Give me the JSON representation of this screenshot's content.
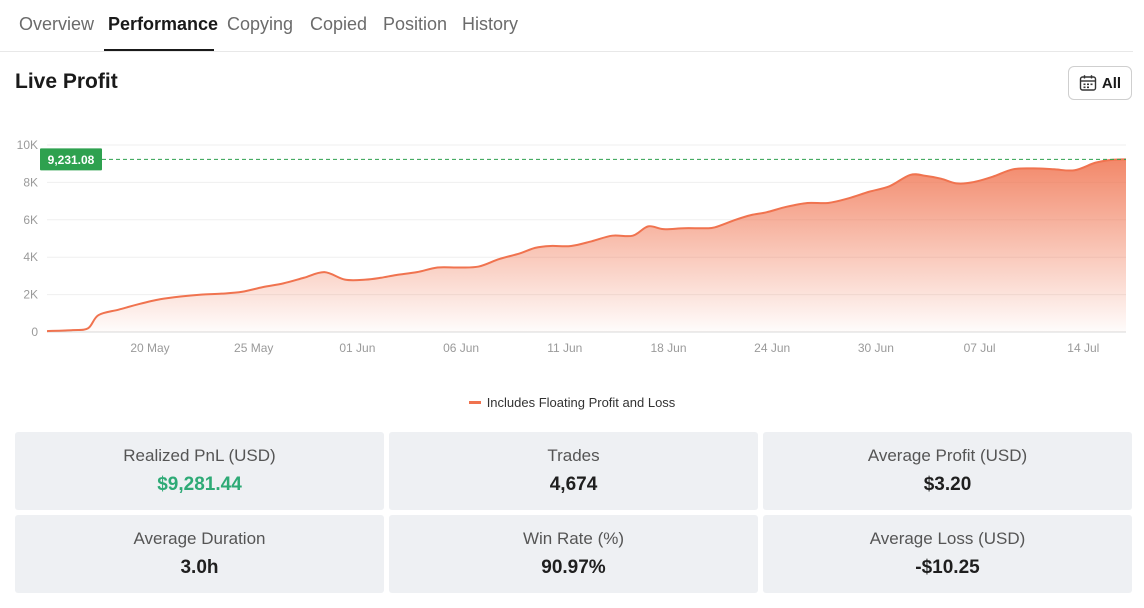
{
  "tabs": [
    {
      "label": "Overview",
      "active": false
    },
    {
      "label": "Performance",
      "active": true
    },
    {
      "label": "Copying",
      "active": false
    },
    {
      "label": "Copied",
      "active": false
    },
    {
      "label": "Position",
      "active": false
    },
    {
      "label": "History",
      "active": false
    }
  ],
  "section": {
    "title": "Live Profit"
  },
  "range_button": {
    "label": "All",
    "icon": "calendar-icon"
  },
  "colors": {
    "line": "#f0734f",
    "marker": "#2ea14f",
    "positive": "#2eaa76"
  },
  "chart_data": {
    "type": "area",
    "marker_label": "9,231.08",
    "marker_value": 9231.08,
    "ylim": [
      0,
      10000
    ],
    "yticks": [
      0,
      2000,
      4000,
      6000,
      8000,
      10000
    ],
    "ytick_labels": [
      "0",
      "2K",
      "4K",
      "6K",
      "8K",
      "10K"
    ],
    "xticks": [
      "20 May",
      "25 May",
      "01 Jun",
      "06 Jun",
      "11 Jun",
      "18 Jun",
      "24 Jun",
      "30 Jun",
      "07 Jul",
      "14 Jul"
    ],
    "x": [
      0,
      2.5,
      4,
      5,
      7,
      9,
      11,
      13,
      15,
      17,
      19,
      21,
      23,
      25,
      27,
      29,
      31,
      32.5,
      34,
      36,
      38,
      40,
      42,
      44,
      46,
      47.5,
      49,
      51,
      53,
      55,
      57,
      58.5,
      60,
      62,
      64,
      65,
      67,
      68.5,
      70,
      72,
      74,
      76,
      78,
      80,
      82,
      84,
      85.5,
      87,
      88.5,
      90,
      92,
      94,
      96,
      98,
      100,
      102,
      103.5,
      105
    ],
    "y": [
      50,
      100,
      200,
      900,
      1200,
      1500,
      1750,
      1900,
      2000,
      2050,
      2150,
      2400,
      2600,
      2900,
      3200,
      2800,
      2800,
      2900,
      3050,
      3200,
      3450,
      3450,
      3500,
      3900,
      4200,
      4500,
      4600,
      4600,
      4850,
      5150,
      5150,
      5650,
      5500,
      5550,
      5550,
      5600,
      6000,
      6250,
      6400,
      6700,
      6900,
      6900,
      7150,
      7500,
      7800,
      8400,
      8350,
      8200,
      7950,
      8000,
      8300,
      8700,
      8750,
      8700,
      8650,
      9050,
      9200,
      9231.08
    ],
    "xlim": [
      0,
      105
    ],
    "legend": [
      "Includes Floating Profit and Loss"
    ],
    "legend_position": "bottom-center"
  },
  "stats": [
    {
      "label": "Realized PnL (USD)",
      "value": "$9,281.44",
      "positive": true
    },
    {
      "label": "Trades",
      "value": "4,674",
      "positive": false
    },
    {
      "label": "Average Profit (USD)",
      "value": "$3.20",
      "positive": false
    },
    {
      "label": "Average Duration",
      "value": "3.0h",
      "positive": false
    },
    {
      "label": "Win Rate (%)",
      "value": "90.97%",
      "positive": false
    },
    {
      "label": "Average Loss (USD)",
      "value": "-$10.25",
      "positive": false
    }
  ]
}
